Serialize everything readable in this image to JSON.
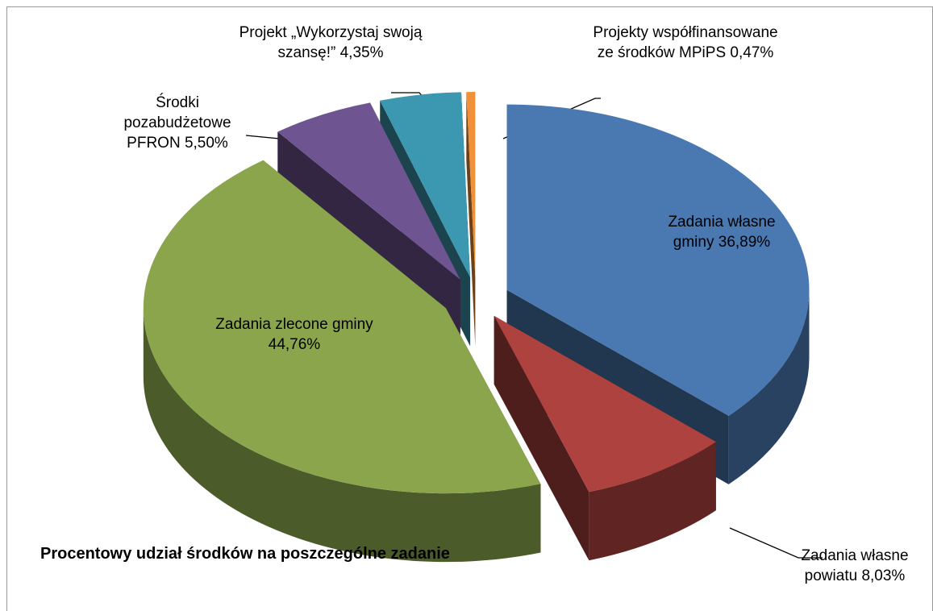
{
  "chart_data": {
    "type": "pie3d",
    "title": "Procentowy udział środków na poszczególne zadanie",
    "categories": [
      "Zadania własne gminy",
      "Zadania własne powiatu",
      "Zadania zlecone gminy",
      "Środki pozabudżetowe PFRON",
      "Projekt „Wykorzystaj swoją szansę!”",
      "Projekty współfinansowane ze środków MPiPS"
    ],
    "values": [
      36.89,
      8.03,
      44.76,
      5.5,
      4.35,
      0.47
    ],
    "value_labels": [
      "36,89%",
      "8,03%",
      "44,76%",
      "5,50%",
      "4,35%",
      "0,47%"
    ],
    "colors": [
      "#4a78b0",
      "#ae423f",
      "#8aa54c",
      "#6e5592",
      "#3b98b0",
      "#f0913a"
    ]
  }
}
